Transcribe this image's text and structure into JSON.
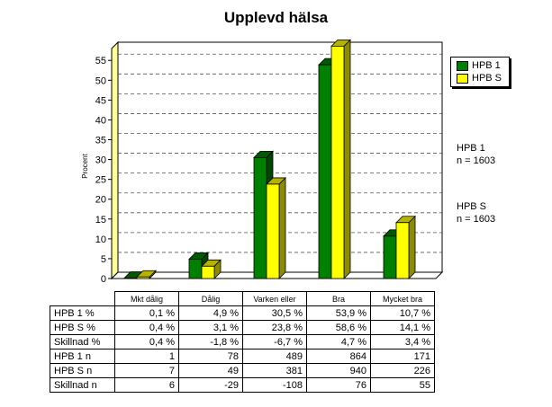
{
  "chart_data": {
    "type": "bar",
    "title": "Upplevd hälsa",
    "ylabel": "Procent",
    "ylim": [
      0,
      58
    ],
    "yticks": [
      0,
      5,
      10,
      15,
      20,
      25,
      30,
      35,
      40,
      45,
      50,
      55
    ],
    "grid": true,
    "legend_position": "top-right",
    "categories": [
      "Mkt dålig",
      "Dålig",
      "Varken eller",
      "Bra",
      "Mycket bra"
    ],
    "series": [
      {
        "name": "HPB 1",
        "color": "#008000",
        "values": [
          0.1,
          4.9,
          30.5,
          53.9,
          10.7
        ]
      },
      {
        "name": "HPB S",
        "color": "#ffff00",
        "values": [
          0.4,
          3.1,
          23.8,
          58.6,
          14.1
        ]
      }
    ]
  },
  "notes": [
    {
      "line1": "HPB 1",
      "line2": "n = 1603"
    },
    {
      "line1": "HPB S",
      "line2": "n = 1603"
    }
  ],
  "table": {
    "columns": [
      "Mkt dålig",
      "Dålig",
      "Varken eller",
      "Bra",
      "Mycket bra"
    ],
    "rows": [
      {
        "label": "HPB 1 %",
        "cells": [
          "0,1 %",
          "4,9 %",
          "30,5 %",
          "53,9 %",
          "10,7 %"
        ]
      },
      {
        "label": "HPB S %",
        "cells": [
          "0,4 %",
          "3,1 %",
          "23,8 %",
          "58,6 %",
          "14,1 %"
        ]
      },
      {
        "label": "Skillnad %",
        "cells": [
          "0,4 %",
          "-1,8 %",
          "-6,7 %",
          "4,7 %",
          "3,4 %"
        ]
      },
      {
        "label": "HPB 1 n",
        "cells": [
          "1",
          "78",
          "489",
          "864",
          "171"
        ]
      },
      {
        "label": "HPB S n",
        "cells": [
          "7",
          "49",
          "381",
          "940",
          "226"
        ]
      },
      {
        "label": "Skillnad n",
        "cells": [
          "6",
          "-29",
          "-108",
          "76",
          "55"
        ]
      }
    ]
  }
}
